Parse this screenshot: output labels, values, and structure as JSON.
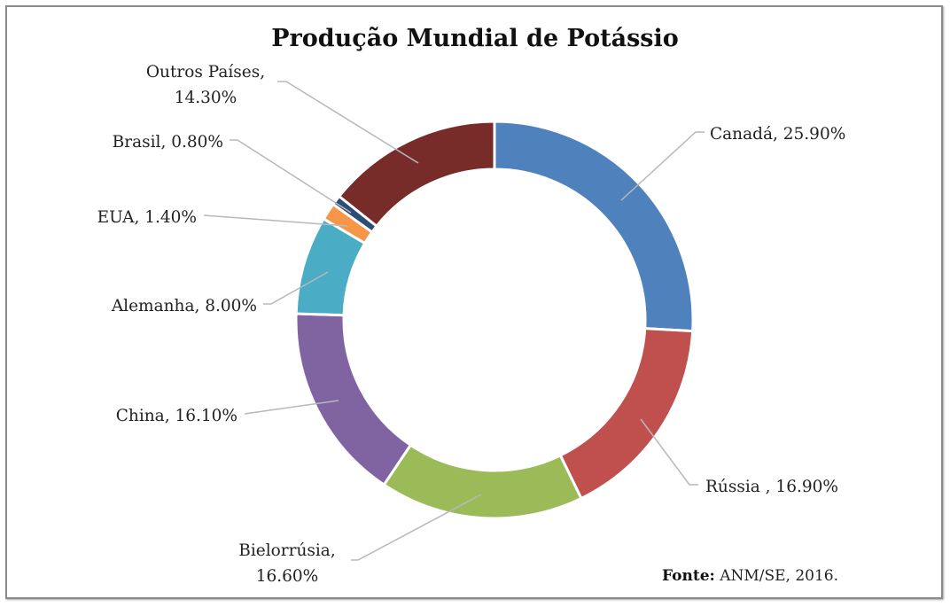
{
  "chart_data": {
    "type": "pie",
    "subtype": "donut",
    "title": "Produção Mundial de Potássio",
    "source_label": "Fonte:",
    "source_text": " ANM/SE, 2016.",
    "unit": "%",
    "legend": "none (data labels with leader lines)",
    "slices": [
      {
        "name": "Canadá",
        "value": 25.9,
        "label": "Canadá, 25.90%",
        "color": "#4F81BD"
      },
      {
        "name": "Rússia",
        "value": 16.9,
        "label": "Rússia , 16.90%",
        "color": "#C0504D"
      },
      {
        "name": "Bielorrúsia",
        "value": 16.6,
        "label_lines": [
          "Bielorrúsia,",
          "16.60%"
        ],
        "color": "#9BBB59"
      },
      {
        "name": "China",
        "value": 16.1,
        "label": "China, 16.10%",
        "color": "#8064A2"
      },
      {
        "name": "Alemanha",
        "value": 8.0,
        "label": "Alemanha, 8.00%",
        "color": "#4BACC6"
      },
      {
        "name": "EUA",
        "value": 1.4,
        "label": "EUA, 1.40%",
        "color": "#F79646"
      },
      {
        "name": "Brasil",
        "value": 0.8,
        "label": "Brasil, 0.80%",
        "color": "#2C4D75"
      },
      {
        "name": "Outros Países",
        "value": 14.3,
        "label_lines": [
          "Outros Países,",
          "14.30%"
        ],
        "color": "#772C2A"
      }
    ]
  }
}
